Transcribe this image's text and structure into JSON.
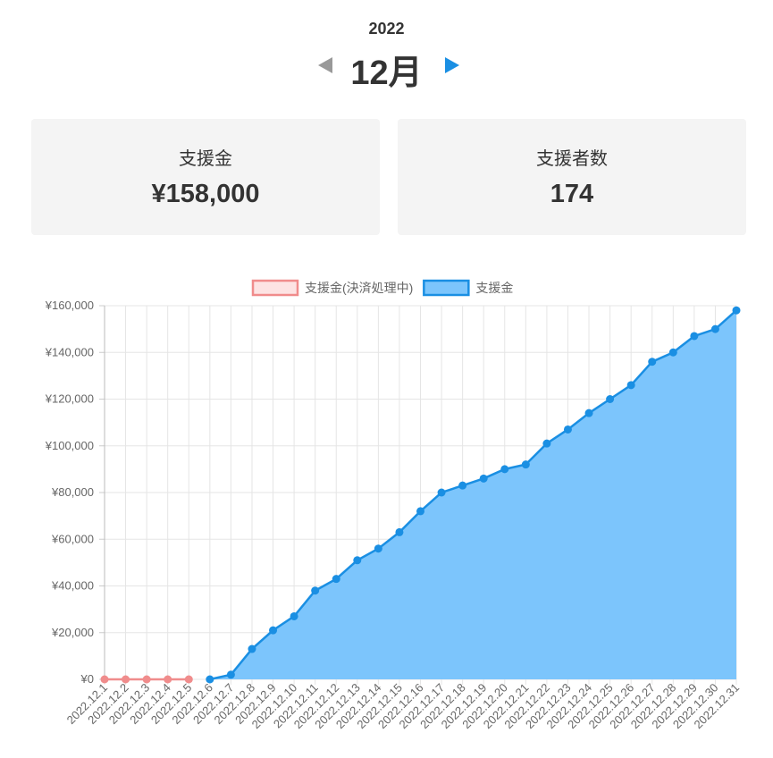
{
  "header": {
    "year": "2022",
    "month": "12月"
  },
  "cards": [
    {
      "label": "支援金",
      "value": "¥158,000"
    },
    {
      "label": "支援者数",
      "value": "174"
    }
  ],
  "chart_data": {
    "type": "line",
    "categories": [
      "2022.12.1",
      "2022.12.2",
      "2022.12.3",
      "2022.12.4",
      "2022.12.5",
      "2022.12.6",
      "2022.12.7",
      "2022.12.8",
      "2022.12.9",
      "2022.12.10",
      "2022.12.11",
      "2022.12.12",
      "2022.12.13",
      "2022.12.14",
      "2022.12.15",
      "2022.12.16",
      "2022.12.17",
      "2022.12.18",
      "2022.12.19",
      "2022.12.20",
      "2022.12.21",
      "2022.12.22",
      "2022.12.23",
      "2022.12.24",
      "2022.12.25",
      "2022.12.26",
      "2022.12.27",
      "2022.12.28",
      "2022.12.29",
      "2022.12.30",
      "2022.12.31"
    ],
    "series": [
      {
        "name": "支援金(決済処理中)",
        "color": "#f08c8c",
        "fill": "#fde3e3",
        "values": [
          0,
          0,
          0,
          0,
          0,
          null,
          null,
          null,
          null,
          null,
          null,
          null,
          null,
          null,
          null,
          null,
          null,
          null,
          null,
          null,
          null,
          null,
          null,
          null,
          null,
          null,
          null,
          null,
          null,
          null,
          null
        ]
      },
      {
        "name": "支援金",
        "color": "#1a8fe3",
        "fill": "#7cc5fc",
        "values": [
          null,
          null,
          null,
          null,
          null,
          0,
          2000,
          13000,
          21000,
          27000,
          38000,
          43000,
          51000,
          56000,
          63000,
          72000,
          80000,
          83000,
          86000,
          90000,
          92000,
          101000,
          107000,
          114000,
          120000,
          126000,
          136000,
          140000,
          147000,
          150000,
          158000
        ]
      }
    ],
    "ylim": [
      0,
      160000
    ],
    "yticks": [
      {
        "value": 0,
        "label": "¥0"
      },
      {
        "value": 20000,
        "label": "¥20,000"
      },
      {
        "value": 40000,
        "label": "¥40,000"
      },
      {
        "value": 60000,
        "label": "¥60,000"
      },
      {
        "value": 80000,
        "label": "¥80,000"
      },
      {
        "value": 100000,
        "label": "¥100,000"
      },
      {
        "value": 120000,
        "label": "¥120,000"
      },
      {
        "value": 140000,
        "label": "¥140,000"
      },
      {
        "value": 160000,
        "label": "¥160,000"
      }
    ],
    "grid": true
  }
}
